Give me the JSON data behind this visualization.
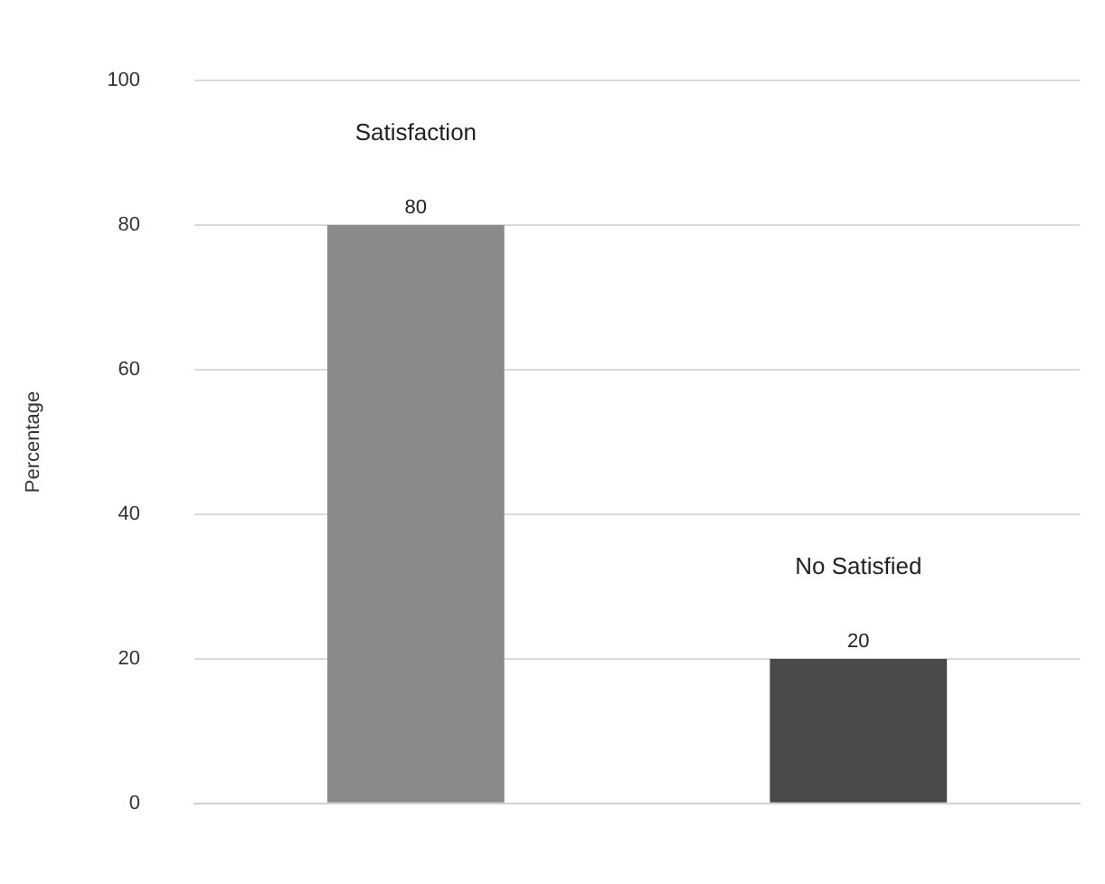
{
  "chart_data": {
    "type": "bar",
    "ylabel": "Percentage",
    "categories": [
      "Satisfaction",
      "No Satisfied"
    ],
    "values": [
      80,
      20
    ],
    "colors": [
      "#8a8a8a",
      "#4a4a4a"
    ],
    "ylim": [
      0,
      100
    ],
    "yticks": [
      0,
      20,
      40,
      60,
      80,
      100
    ],
    "grid": "y",
    "data_labels": true,
    "legend": false
  }
}
